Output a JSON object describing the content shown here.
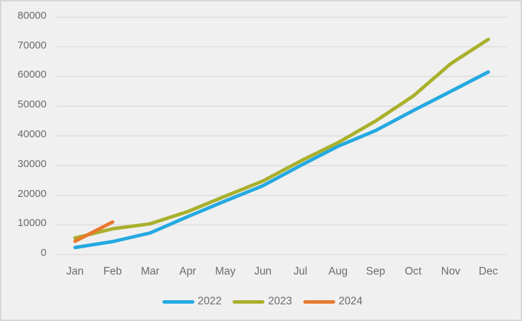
{
  "chart_data": {
    "type": "line",
    "categories": [
      "Jan",
      "Feb",
      "Mar",
      "Apr",
      "May",
      "Jun",
      "Jul",
      "Aug",
      "Sep",
      "Oct",
      "Nov",
      "Dec"
    ],
    "series": [
      {
        "name": "2022",
        "color": "#25a9e0",
        "values": [
          2400,
          4400,
          7300,
          12800,
          18100,
          23200,
          30000,
          36500,
          41800,
          48500,
          55000,
          61500
        ]
      },
      {
        "name": "2023",
        "color": "#a9b02c",
        "values": [
          5600,
          8700,
          10400,
          14500,
          19700,
          24800,
          31500,
          37700,
          45000,
          53400,
          64300,
          72500
        ]
      },
      {
        "name": "2024",
        "color": "#e8792e",
        "values": [
          4500,
          11000
        ]
      }
    ],
    "title": "",
    "xlabel": "",
    "ylabel": "",
    "ylim": [
      0,
      80000
    ],
    "ytick_step": 10000,
    "y_tick_labels": [
      "0",
      "10000",
      "20000",
      "30000",
      "40000",
      "50000",
      "60000",
      "70000",
      "80000"
    ],
    "grid": true,
    "legend_position": "bottom",
    "legend_labels": [
      "2022",
      "2023",
      "2024"
    ]
  },
  "colors": {
    "background": "#f0f0f0",
    "border": "#d6d6d6",
    "gridline": "#dcdcdc",
    "axis_text": "#6b6b6b"
  }
}
